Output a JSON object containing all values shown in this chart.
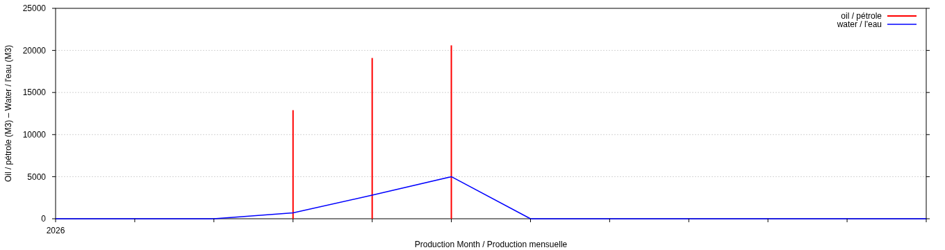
{
  "chart_data": {
    "type": "line",
    "xlabel": "Production Month / Production mensuelle",
    "ylabel": "Oil / pétrole (M3) –  Water / l'eau (M3)",
    "categories": [
      "2026",
      null,
      null,
      null,
      null,
      null,
      null,
      null,
      null,
      null,
      null,
      null
    ],
    "series": [
      {
        "name": "oil / pétrole",
        "type": "bar",
        "color": "#ff0000",
        "values": [
          null,
          null,
          null,
          12900,
          19100,
          20600,
          null,
          null,
          null,
          null,
          null,
          null
        ]
      },
      {
        "name": "water / l'eau",
        "color": "#0000ff",
        "values": [
          0,
          0,
          0,
          700,
          2800,
          5000,
          0,
          0,
          0,
          0,
          0,
          0
        ]
      }
    ],
    "ylim": [
      0,
      25000
    ],
    "yticks": [
      0,
      5000,
      10000,
      15000,
      20000,
      25000
    ],
    "grid": "y",
    "legend": "top right",
    "line_style": "solid"
  }
}
